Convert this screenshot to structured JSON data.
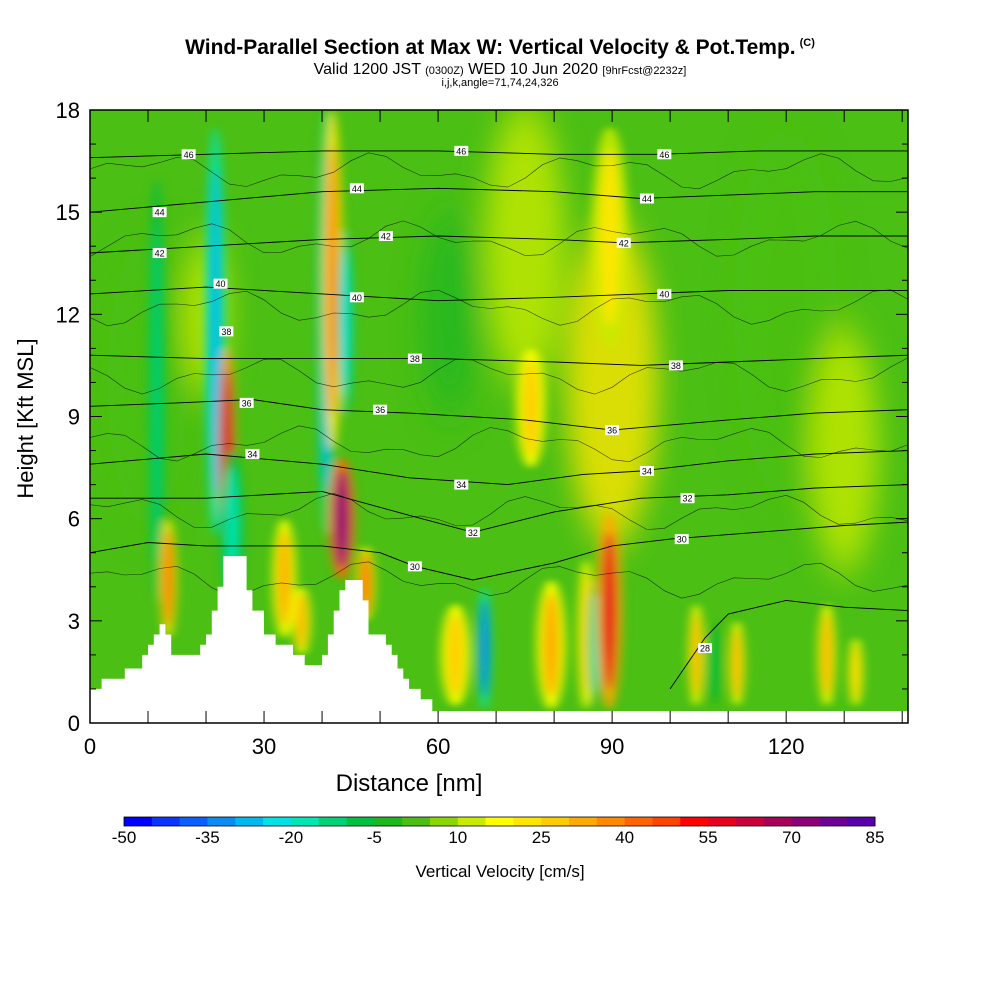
{
  "title": "Wind-Parallel Section at Max W: Vertical Velocity & Pot.Temp.",
  "copyright_mark": "(C)",
  "subtitle": {
    "valid": "Valid 1200 JST",
    "utc": "(0300Z)",
    "date": "WED 10 Jun 2020",
    "forecast": "[9hrFcst@2232z]"
  },
  "indices_line": "i,j,k,angle=71,74,24,326",
  "chart_data": {
    "type": "heatmap",
    "xlabel": "Distance [nm]",
    "ylabel": "Height [Kft MSL]",
    "xlim": [
      0,
      141
    ],
    "ylim": [
      0,
      18
    ],
    "x_ticks": [
      0,
      30,
      60,
      90,
      120
    ],
    "y_ticks": [
      0,
      3,
      6,
      9,
      12,
      15,
      18
    ],
    "colorbar": {
      "label": "Vertical Velocity [cm/s]",
      "min": -50,
      "max": 85,
      "step": 5,
      "tick_labels": [
        -50,
        -35,
        -20,
        -5,
        10,
        25,
        40,
        55,
        70,
        85
      ],
      "colors": [
        "#0000ff",
        "#0b35ff",
        "#0a5fff",
        "#0a8cf5",
        "#00b9f0",
        "#00e1e8",
        "#00e6b4",
        "#00d278",
        "#00c040",
        "#1eb81e",
        "#4bbf14",
        "#8ad600",
        "#c8eb00",
        "#ffff00",
        "#ffe600",
        "#ffcc00",
        "#ffaa00",
        "#ff8800",
        "#ff6600",
        "#ff4400",
        "#ff0000",
        "#e6001e",
        "#c8003c",
        "#a8005a",
        "#8c0078",
        "#6e0096",
        "#5a00aa"
      ]
    },
    "terrain": [
      [
        0,
        1.0
      ],
      [
        2,
        1.0
      ],
      [
        2,
        1.3
      ],
      [
        6,
        1.3
      ],
      [
        6,
        1.6
      ],
      [
        9,
        1.6
      ],
      [
        9,
        2.0
      ],
      [
        10,
        2.0
      ],
      [
        10,
        2.3
      ],
      [
        11,
        2.3
      ],
      [
        11,
        2.6
      ],
      [
        12,
        2.6
      ],
      [
        12,
        2.9
      ],
      [
        13,
        2.9
      ],
      [
        13,
        2.6
      ],
      [
        14,
        2.6
      ],
      [
        14,
        2.0
      ],
      [
        19,
        2.0
      ],
      [
        19,
        2.3
      ],
      [
        20,
        2.3
      ],
      [
        20,
        2.6
      ],
      [
        21,
        2.6
      ],
      [
        21,
        3.3
      ],
      [
        22,
        3.3
      ],
      [
        22,
        4.0
      ],
      [
        23,
        4.0
      ],
      [
        23,
        4.9
      ],
      [
        27,
        4.9
      ],
      [
        27,
        3.9
      ],
      [
        28,
        3.9
      ],
      [
        28,
        3.3
      ],
      [
        30,
        3.3
      ],
      [
        30,
        2.6
      ],
      [
        32,
        2.6
      ],
      [
        32,
        2.3
      ],
      [
        35,
        2.3
      ],
      [
        35,
        2.0
      ],
      [
        37,
        2.0
      ],
      [
        37,
        1.7
      ],
      [
        40,
        1.7
      ],
      [
        40,
        2.0
      ],
      [
        41,
        2.0
      ],
      [
        41,
        2.6
      ],
      [
        42,
        2.6
      ],
      [
        42,
        3.3
      ],
      [
        43,
        3.3
      ],
      [
        43,
        3.9
      ],
      [
        44,
        3.9
      ],
      [
        44,
        4.2
      ],
      [
        47,
        4.2
      ],
      [
        47,
        3.6
      ],
      [
        48,
        3.6
      ],
      [
        48,
        2.6
      ],
      [
        51,
        2.6
      ],
      [
        51,
        2.3
      ],
      [
        52,
        2.3
      ],
      [
        52,
        2.0
      ],
      [
        53,
        2.0
      ],
      [
        53,
        1.6
      ],
      [
        54,
        1.6
      ],
      [
        54,
        1.3
      ],
      [
        55,
        1.3
      ],
      [
        55,
        1.0
      ],
      [
        57,
        1.0
      ],
      [
        57,
        0.7
      ],
      [
        59,
        0.7
      ],
      [
        59,
        0.35
      ],
      [
        60,
        0.35
      ],
      [
        60,
        0
      ]
    ],
    "bands": [
      {
        "x": 11.5,
        "w": 1.4,
        "value": -15,
        "ymin": 3.5,
        "ymax": 16
      },
      {
        "x": 13.5,
        "w": 1.4,
        "value": 38,
        "ymin": 2.5,
        "ymax": 6
      },
      {
        "x": 21.6,
        "w": 1.7,
        "value": -32,
        "ymin": 5.5,
        "ymax": 17.5
      },
      {
        "x": 23.6,
        "w": 1.5,
        "value": 62,
        "ymin": 4.9,
        "ymax": 11
      },
      {
        "x": 24.5,
        "w": 2.0,
        "value": -18,
        "ymin": 3.5,
        "ymax": 8
      },
      {
        "x": 33.5,
        "w": 2.0,
        "value": 28,
        "ymin": 2.5,
        "ymax": 6
      },
      {
        "x": 36.5,
        "w": 1.5,
        "value": 30,
        "ymin": 2.0,
        "ymax": 4
      },
      {
        "x": 40.7,
        "w": 1.6,
        "value": -30,
        "ymin": 5.5,
        "ymax": 18
      },
      {
        "x": 41.8,
        "w": 1.7,
        "value": 35,
        "ymin": 8,
        "ymax": 18
      },
      {
        "x": 43.4,
        "w": 2.2,
        "value": 72,
        "ymin": 4.2,
        "ymax": 7.8
      },
      {
        "x": 44.0,
        "w": 1.3,
        "value": -25,
        "ymin": 9,
        "ymax": 14.5
      },
      {
        "x": 47.5,
        "w": 1.6,
        "value": 38,
        "ymin": 3.0,
        "ymax": 5.2
      },
      {
        "x": 63.0,
        "w": 2.5,
        "value": 25,
        "ymin": 0.5,
        "ymax": 3.5
      },
      {
        "x": 68.0,
        "w": 1.2,
        "value": -40,
        "ymin": 0.4,
        "ymax": 4.0
      },
      {
        "x": 76.0,
        "w": 2.5,
        "value": 25,
        "ymin": 7.5,
        "ymax": 11
      },
      {
        "x": 79.5,
        "w": 2.5,
        "value": 30,
        "ymin": 0.4,
        "ymax": 4.2
      },
      {
        "x": 85.5,
        "w": 1.4,
        "value": 25,
        "ymin": 0.4,
        "ymax": 4.8
      },
      {
        "x": 87.0,
        "w": 1.2,
        "value": -18,
        "ymin": 0.5,
        "ymax": 4.2
      },
      {
        "x": 89.5,
        "w": 2.2,
        "value": 55,
        "ymin": 0.4,
        "ymax": 6.2
      },
      {
        "x": 89.6,
        "w": 3.2,
        "value": 18,
        "ymin": 11,
        "ymax": 17.5
      },
      {
        "x": 104.5,
        "w": 1.3,
        "value": 28,
        "ymin": 0.5,
        "ymax": 3.5
      },
      {
        "x": 107.5,
        "w": 1.3,
        "value": -10,
        "ymin": 0.5,
        "ymax": 3.0
      },
      {
        "x": 111.5,
        "w": 1.3,
        "value": 28,
        "ymin": 0.5,
        "ymax": 3.0
      },
      {
        "x": 127.0,
        "w": 1.5,
        "value": 28,
        "ymin": 0.5,
        "ymax": 3.5
      },
      {
        "x": 132.0,
        "w": 1.2,
        "value": 25,
        "ymin": 0.5,
        "ymax": 2.5
      }
    ],
    "isentropes": [
      {
        "value": 28,
        "points": [
          [
            100,
            1.0
          ],
          [
            106,
            2.5
          ],
          [
            110,
            3.2
          ],
          [
            120,
            3.6
          ],
          [
            130,
            3.4
          ],
          [
            141,
            3.3
          ]
        ],
        "label_at": [
          106,
          2.2
        ]
      },
      {
        "value": 30,
        "points": [
          [
            0,
            5.0
          ],
          [
            10,
            5.3
          ],
          [
            20,
            5.2
          ],
          [
            40,
            5.2
          ],
          [
            50,
            5.0
          ],
          [
            56,
            4.6
          ],
          [
            66,
            4.2
          ],
          [
            80,
            4.7
          ],
          [
            90,
            5.2
          ],
          [
            100,
            5.4
          ],
          [
            115,
            5.6
          ],
          [
            130,
            5.8
          ],
          [
            141,
            5.9
          ]
        ],
        "label_at": [
          56,
          4.6
        ]
      },
      {
        "value": 32,
        "points": [
          [
            0,
            6.6
          ],
          [
            20,
            6.6
          ],
          [
            40,
            6.8
          ],
          [
            55,
            6.1
          ],
          [
            66,
            5.6
          ],
          [
            80,
            6.2
          ],
          [
            95,
            6.6
          ],
          [
            110,
            6.7
          ],
          [
            125,
            6.9
          ],
          [
            141,
            7.0
          ]
        ],
        "label_at": [
          66,
          5.6
        ]
      },
      {
        "value": 34,
        "points": [
          [
            0,
            7.6
          ],
          [
            20,
            7.9
          ],
          [
            40,
            7.6
          ],
          [
            55,
            7.2
          ],
          [
            72,
            7.0
          ],
          [
            85,
            7.3
          ],
          [
            95,
            7.4
          ],
          [
            110,
            7.7
          ],
          [
            125,
            7.9
          ],
          [
            141,
            8.0
          ]
        ],
        "label_at": [
          64,
          7.0
        ]
      },
      {
        "value": 36,
        "points": [
          [
            0,
            9.3
          ],
          [
            15,
            9.4
          ],
          [
            28,
            9.5
          ],
          [
            40,
            9.2
          ],
          [
            55,
            9.1
          ],
          [
            75,
            8.9
          ],
          [
            90,
            8.6
          ],
          [
            110,
            8.9
          ],
          [
            125,
            9.1
          ],
          [
            141,
            9.2
          ]
        ],
        "label_at": [
          50,
          9.2
        ]
      },
      {
        "value": 38,
        "points": [
          [
            0,
            10.8
          ],
          [
            20,
            10.7
          ],
          [
            40,
            10.7
          ],
          [
            60,
            10.7
          ],
          [
            80,
            10.6
          ],
          [
            95,
            10.5
          ],
          [
            110,
            10.6
          ],
          [
            125,
            10.7
          ],
          [
            141,
            10.8
          ]
        ],
        "label_at": [
          56,
          10.7
        ]
      },
      {
        "value": 40,
        "points": [
          [
            0,
            12.6
          ],
          [
            20,
            12.8
          ],
          [
            40,
            12.6
          ],
          [
            60,
            12.4
          ],
          [
            80,
            12.5
          ],
          [
            95,
            12.6
          ],
          [
            110,
            12.7
          ],
          [
            125,
            12.7
          ],
          [
            141,
            12.7
          ]
        ],
        "label_at": [
          99,
          12.6
        ]
      },
      {
        "value": 42,
        "points": [
          [
            0,
            13.8
          ],
          [
            20,
            14.0
          ],
          [
            40,
            14.2
          ],
          [
            60,
            14.3
          ],
          [
            80,
            14.2
          ],
          [
            92,
            14.1
          ],
          [
            110,
            14.2
          ],
          [
            125,
            14.3
          ],
          [
            141,
            14.3
          ]
        ],
        "label_at": [
          92,
          14.1
        ]
      },
      {
        "value": 44,
        "points": [
          [
            0,
            15.0
          ],
          [
            20,
            15.3
          ],
          [
            40,
            15.6
          ],
          [
            60,
            15.7
          ],
          [
            80,
            15.6
          ],
          [
            95,
            15.4
          ],
          [
            110,
            15.5
          ],
          [
            125,
            15.6
          ],
          [
            141,
            15.6
          ]
        ],
        "label_at": [
          96,
          15.4
        ]
      },
      {
        "value": 46,
        "points": [
          [
            0,
            16.6
          ],
          [
            20,
            16.7
          ],
          [
            40,
            16.8
          ],
          [
            60,
            16.8
          ],
          [
            80,
            16.7
          ],
          [
            98,
            16.7
          ],
          [
            115,
            16.8
          ],
          [
            141,
            16.8
          ]
        ],
        "label_at": [
          64,
          16.8
        ]
      },
      {
        "value": 46,
        "points": [],
        "label_at": [
          17,
          16.7
        ]
      },
      {
        "value": 46,
        "points": [],
        "label_at": [
          99,
          16.7
        ]
      },
      {
        "value": 44,
        "points": [],
        "label_at": [
          12,
          15.0
        ]
      },
      {
        "value": 44,
        "points": [],
        "label_at": [
          46,
          15.7
        ]
      },
      {
        "value": 42,
        "points": [],
        "label_at": [
          12,
          13.8
        ]
      },
      {
        "value": 42,
        "points": [],
        "label_at": [
          51,
          14.3
        ]
      },
      {
        "value": 40,
        "points": [],
        "label_at": [
          22.5,
          12.9
        ]
      },
      {
        "value": 40,
        "points": [],
        "label_at": [
          46,
          12.5
        ]
      },
      {
        "value": 38,
        "points": [],
        "label_at": [
          23.5,
          11.5
        ]
      },
      {
        "value": 38,
        "points": [],
        "label_at": [
          101,
          10.5
        ]
      },
      {
        "value": 36,
        "points": [],
        "label_at": [
          27,
          9.4
        ]
      },
      {
        "value": 36,
        "points": [],
        "label_at": [
          90,
          8.6
        ]
      },
      {
        "value": 34,
        "points": [],
        "label_at": [
          28,
          7.9
        ]
      },
      {
        "value": 34,
        "points": [],
        "label_at": [
          96,
          7.4
        ]
      },
      {
        "value": 32,
        "points": [],
        "label_at": [
          103,
          6.6
        ]
      },
      {
        "value": 30,
        "points": [],
        "label_at": [
          102,
          5.4
        ]
      }
    ]
  }
}
